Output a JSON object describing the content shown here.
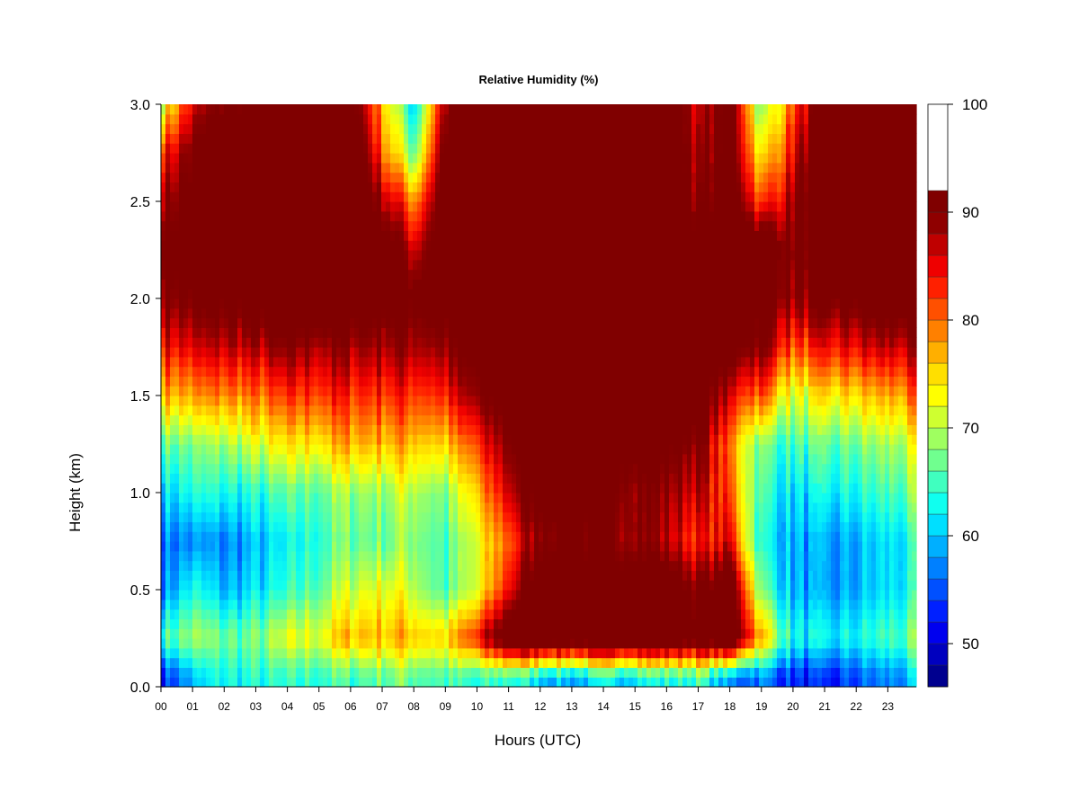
{
  "chart_data": {
    "type": "heatmap",
    "title": "Relative Humidity (%)",
    "xlabel": "Hours (UTC)",
    "ylabel": "Height (km)",
    "x_ticks": [
      "00",
      "01",
      "02",
      "03",
      "04",
      "05",
      "06",
      "07",
      "08",
      "09",
      "10",
      "11",
      "12",
      "13",
      "14",
      "15",
      "16",
      "17",
      "18",
      "19",
      "20",
      "21",
      "22",
      "23"
    ],
    "y_ticks": [
      "0.0",
      "0.5",
      "1.0",
      "1.5",
      "2.0",
      "2.5",
      "3.0"
    ],
    "xlim": [
      0,
      23.9
    ],
    "ylim": [
      0,
      3.0
    ],
    "colorbar": {
      "range": [
        46,
        100
      ],
      "ticks": [
        "50",
        "60",
        "70",
        "80",
        "90",
        "100"
      ],
      "levels": [
        46,
        48,
        50,
        52,
        54,
        56,
        58,
        60,
        62,
        64,
        66,
        68,
        70,
        72,
        74,
        76,
        78,
        80,
        82,
        84,
        86,
        88,
        90,
        92,
        94,
        96,
        98,
        100
      ],
      "colors": [
        "#00008F",
        "#0000BF",
        "#0000EF",
        "#0020FF",
        "#0050FF",
        "#0080FF",
        "#00AFFF",
        "#00DFFF",
        "#10FFEF",
        "#40FFBF",
        "#70FF8F",
        "#9FFF60",
        "#CFFF30",
        "#FFFF00",
        "#FFDF00",
        "#FFAF00",
        "#FF8000",
        "#FF5000",
        "#FF2000",
        "#EF0000",
        "#BF0000",
        "#8F0000",
        "#800000"
      ]
    },
    "rows_height_km": [
      0.05,
      0.25,
      0.5,
      0.75,
      1.0,
      1.25,
      1.5,
      1.75,
      2.0,
      2.25,
      2.5,
      2.75,
      3.0
    ],
    "columns_hour": [
      0,
      1,
      2,
      3,
      4,
      5,
      6,
      7,
      8,
      9,
      10,
      11,
      12,
      13,
      14,
      15,
      16,
      17,
      18,
      19,
      20,
      21,
      22,
      23,
      23.9
    ],
    "values": [
      [
        52,
        58,
        62,
        62,
        62,
        64,
        64,
        66,
        66,
        64,
        62,
        64,
        60,
        58,
        60,
        62,
        62,
        64,
        56,
        56,
        52,
        50,
        54,
        56,
        58
      ],
      [
        64,
        68,
        66,
        66,
        70,
        72,
        76,
        76,
        76,
        74,
        82,
        96,
        98,
        96,
        96,
        98,
        96,
        94,
        98,
        76,
        62,
        60,
        62,
        64,
        66
      ],
      [
        56,
        62,
        58,
        60,
        62,
        66,
        70,
        72,
        70,
        64,
        70,
        84,
        96,
        96,
        94,
        96,
        96,
        90,
        96,
        66,
        58,
        56,
        58,
        60,
        62
      ],
      [
        56,
        56,
        56,
        58,
        60,
        64,
        66,
        66,
        68,
        64,
        70,
        80,
        90,
        92,
        88,
        90,
        86,
        82,
        84,
        62,
        58,
        56,
        58,
        60,
        62
      ],
      [
        60,
        62,
        62,
        62,
        64,
        66,
        68,
        68,
        70,
        66,
        74,
        86,
        94,
        94,
        92,
        90,
        88,
        86,
        80,
        64,
        60,
        60,
        62,
        64,
        66
      ],
      [
        66,
        66,
        68,
        70,
        72,
        74,
        76,
        76,
        76,
        74,
        80,
        90,
        96,
        96,
        94,
        94,
        92,
        90,
        78,
        66,
        64,
        64,
        66,
        68,
        70
      ],
      [
        76,
        76,
        78,
        78,
        80,
        82,
        82,
        82,
        82,
        82,
        88,
        94,
        98,
        98,
        98,
        98,
        96,
        96,
        84,
        80,
        70,
        72,
        74,
        76,
        78
      ],
      [
        84,
        84,
        86,
        86,
        88,
        88,
        88,
        88,
        88,
        88,
        92,
        96,
        98,
        98,
        98,
        98,
        98,
        98,
        92,
        90,
        80,
        82,
        84,
        86,
        86
      ],
      [
        90,
        90,
        92,
        94,
        96,
        96,
        94,
        94,
        92,
        94,
        96,
        98,
        100,
        100,
        100,
        100,
        100,
        98,
        96,
        94,
        88,
        90,
        92,
        94,
        94
      ],
      [
        92,
        94,
        96,
        98,
        100,
        100,
        98,
        96,
        86,
        96,
        98,
        100,
        100,
        100,
        100,
        100,
        100,
        96,
        98,
        96,
        90,
        94,
        98,
        100,
        100
      ],
      [
        88,
        92,
        96,
        98,
        100,
        100,
        98,
        88,
        78,
        94,
        98,
        100,
        100,
        100,
        100,
        100,
        100,
        88,
        96,
        80,
        88,
        96,
        98,
        100,
        100
      ],
      [
        82,
        90,
        96,
        98,
        100,
        100,
        98,
        80,
        66,
        92,
        98,
        100,
        100,
        100,
        100,
        100,
        100,
        86,
        94,
        72,
        84,
        96,
        96,
        100,
        100
      ],
      [
        70,
        84,
        90,
        94,
        98,
        98,
        94,
        76,
        60,
        88,
        96,
        100,
        100,
        100,
        100,
        100,
        100,
        84,
        94,
        66,
        80,
        92,
        94,
        98,
        98
      ]
    ]
  }
}
